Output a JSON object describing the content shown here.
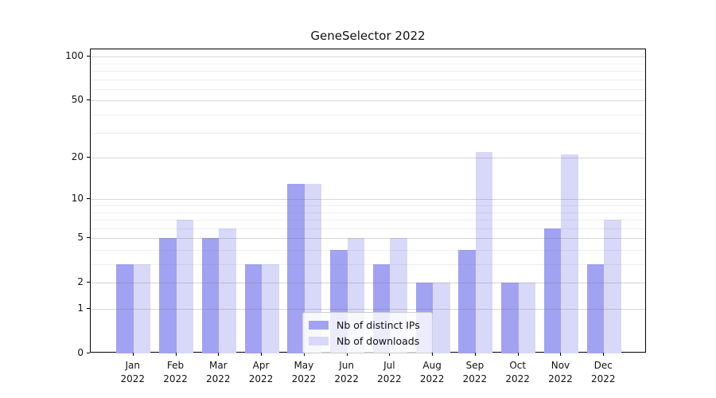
{
  "chart_data": {
    "type": "bar",
    "title": "GeneSelector 2022",
    "categories": [
      {
        "month": "Jan",
        "year": "2022"
      },
      {
        "month": "Feb",
        "year": "2022"
      },
      {
        "month": "Mar",
        "year": "2022"
      },
      {
        "month": "Apr",
        "year": "2022"
      },
      {
        "month": "May",
        "year": "2022"
      },
      {
        "month": "Jun",
        "year": "2022"
      },
      {
        "month": "Jul",
        "year": "2022"
      },
      {
        "month": "Aug",
        "year": "2022"
      },
      {
        "month": "Sep",
        "year": "2022"
      },
      {
        "month": "Oct",
        "year": "2022"
      },
      {
        "month": "Nov",
        "year": "2022"
      },
      {
        "month": "Dec",
        "year": "2022"
      }
    ],
    "series": [
      {
        "name": "Nb of distinct IPs",
        "color": "#a2a2f2",
        "values": [
          3,
          5,
          5,
          3,
          13,
          4,
          3,
          2,
          4,
          2,
          6,
          3
        ]
      },
      {
        "name": "Nb of downloads",
        "color": "#d8d8f8",
        "values": [
          3,
          7,
          6,
          3,
          13,
          5,
          5,
          2,
          22,
          2,
          21,
          7
        ]
      }
    ],
    "yscale": "log1p",
    "ylim": [
      0,
      112
    ],
    "yticks": [
      0,
      1,
      2,
      5,
      10,
      20,
      50,
      100
    ],
    "minor_gridlines": [
      3,
      4,
      6,
      7,
      8,
      9,
      30,
      40,
      60,
      70,
      80,
      90
    ],
    "grid": true,
    "legend_position": "lower center",
    "xlabel": "",
    "ylabel": ""
  }
}
